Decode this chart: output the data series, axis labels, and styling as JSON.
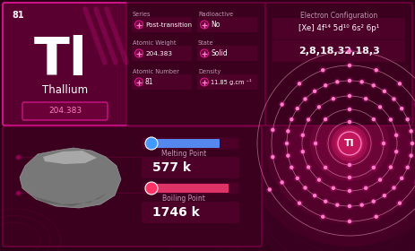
{
  "bg_dark": "#1a000d",
  "bg_mid": "#2e0018",
  "bg_card": "#5a0030",
  "bg_panel": "#3a001e",
  "bg_box": "#4d0028",
  "bg_inner": "#3d0020",
  "pink": "#e8189a",
  "pink_light": "#ff7ec7",
  "pink_dark": "#8b0050",
  "pink_med": "#c2185b",
  "pink_faint": "#6b0038",
  "white": "#ffffff",
  "gray_text": "#c899b8",
  "blue_bar": "#5588ee",
  "red_bar": "#dd3366",
  "element_symbol": "Tl",
  "element_name": "Thallium",
  "atomic_number": "81",
  "atomic_weight": "204.383",
  "series_label": "Series",
  "series_val": "Post-transition",
  "radioactive_label": "Radioactive",
  "radioactive_val": "No",
  "aw_label": "Atomic Weight",
  "aw_val": "204.383",
  "state_label": "State",
  "state_val": "Solid",
  "an_label": "Atomic Number",
  "an_val": "81",
  "density_label": "Density",
  "density_val": "11.85 g.cm ⁻¹",
  "ec_title": "Electron Configuration",
  "electron_config": "[Xe] 4f¹⁴ 5d¹⁰ 6s² 6p¹",
  "electron_shells": "2,8,18,32,18,3",
  "shell_electrons": [
    2,
    8,
    18,
    32,
    18,
    3
  ],
  "mp_label": "Melting Point",
  "mp_val": "577 k",
  "bp_label": "Boiling Point",
  "bp_val": "1746 k"
}
